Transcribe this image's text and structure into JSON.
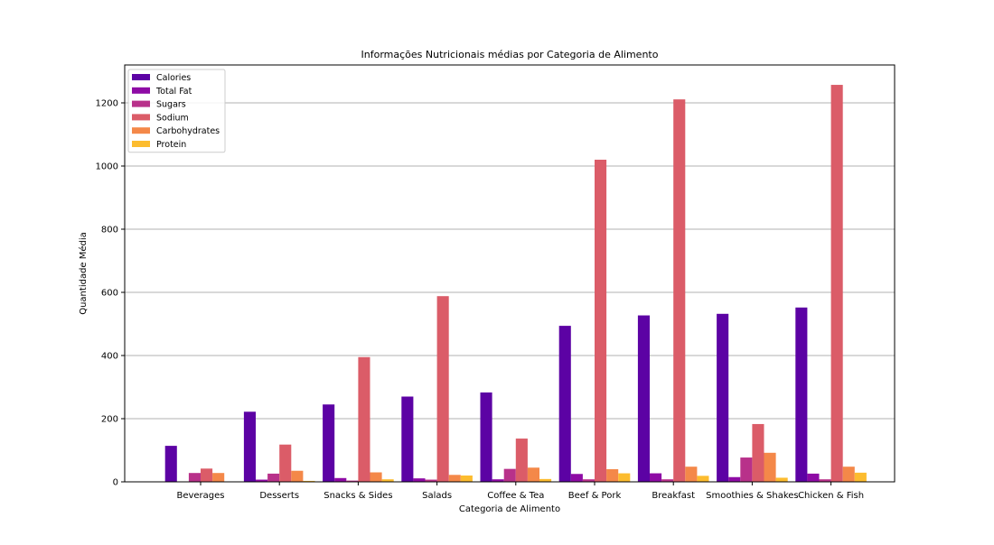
{
  "chart_data": {
    "type": "bar",
    "title": "Informações Nutricionais médias por Categoria de Alimento",
    "xlabel": "Categoria de Alimento",
    "ylabel": "Quantidade Média",
    "ylim": [
      0,
      1320
    ],
    "yticks": [
      0,
      200,
      400,
      600,
      800,
      1000,
      1200
    ],
    "grid": "y",
    "legend_position": "top-left",
    "categories": [
      "Beverages",
      "Desserts",
      "Snacks & Sides",
      "Salads",
      "Coffee & Tea",
      "Beef & Pork",
      "Breakfast",
      "Smoothies & Shakes",
      "Chicken & Fish"
    ],
    "series": [
      {
        "name": "Calories",
        "color": "#5c02a4",
        "values": [
          114,
          222,
          245,
          270,
          283,
          494,
          527,
          532,
          552
        ]
      },
      {
        "name": "Total Fat",
        "color": "#8e0ba5",
        "values": [
          0,
          7,
          12,
          11,
          8,
          25,
          27,
          15,
          26
        ]
      },
      {
        "name": "Sugars",
        "color": "#b8318a",
        "values": [
          28,
          26,
          4,
          7,
          41,
          8,
          8,
          77,
          8
        ]
      },
      {
        "name": "Sodium",
        "color": "#db5c68",
        "values": [
          42,
          118,
          395,
          588,
          137,
          1020,
          1211,
          183,
          1257
        ]
      },
      {
        "name": "Carbohydrates",
        "color": "#f48849",
        "values": [
          28,
          35,
          30,
          22,
          45,
          40,
          48,
          92,
          48
        ]
      },
      {
        "name": "Protein",
        "color": "#fcbc2f",
        "values": [
          1,
          3,
          8,
          20,
          9,
          27,
          19,
          13,
          29
        ]
      }
    ]
  }
}
